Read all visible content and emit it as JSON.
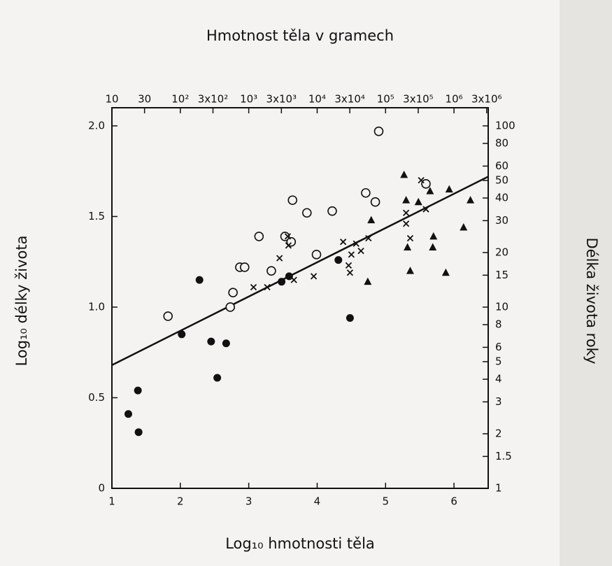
{
  "chart_data": {
    "type": "scatter",
    "x_title": "Log₁₀ hmotnosti těla",
    "y_title": "Log₁₀ délky života",
    "x2_title": "Hmotnost těla v gramech",
    "y2_title": "Délka života roky",
    "xlim": [
      1,
      6.5
    ],
    "xticks": [
      1,
      2,
      3,
      4,
      5,
      6
    ],
    "ylim": [
      0,
      2.1
    ],
    "yticks": [
      0,
      0.5,
      {
        "value": 1,
        "label": "1.0"
      },
      1.5,
      {
        "value": 2,
        "label": "2.0"
      }
    ],
    "x2_log": true,
    "x2lim": [
      10,
      3162278
    ],
    "x2ticks": [
      10,
      30,
      {
        "value": 100,
        "label": "10²"
      },
      {
        "value": 300,
        "label": "3x10²"
      },
      {
        "value": 1000,
        "label": "10³"
      },
      {
        "value": 3000,
        "label": "3x10³"
      },
      {
        "value": 10000,
        "label": "10⁴"
      },
      {
        "value": 30000,
        "label": "3x10⁴"
      },
      {
        "value": 100000,
        "label": "10⁵"
      },
      {
        "value": 300000,
        "label": "3x10⁵"
      },
      {
        "value": 1000000,
        "label": "10⁶"
      },
      {
        "value": 3000000,
        "label": "3x10⁶"
      }
    ],
    "y2_log": true,
    "y2lim": [
      1,
      125.9
    ],
    "y2ticks": [
      1,
      1.5,
      2,
      3,
      4,
      5,
      6,
      8,
      10,
      15,
      20,
      30,
      40,
      50,
      60,
      80,
      100
    ],
    "series": [
      {
        "marker": "filled-circle",
        "color": "#111111",
        "x": [
          1.24,
          1.38,
          1.39,
          2.02,
          2.45,
          2.28,
          2.67,
          2.54,
          3.48,
          3.59,
          4.31,
          4.48
        ],
        "values": [
          0.41,
          0.54,
          0.31,
          0.85,
          0.81,
          1.15,
          0.8,
          0.61,
          1.14,
          1.17,
          1.26,
          0.94
        ]
      },
      {
        "marker": "open-circle",
        "color": "#111111",
        "x": [
          1.82,
          2.73,
          2.77,
          2.87,
          2.94,
          3.15,
          3.33,
          3.53,
          3.62,
          3.64,
          3.85,
          3.99,
          4.22,
          4.71,
          4.85,
          4.9,
          5.59
        ],
        "values": [
          0.95,
          1.0,
          1.08,
          1.22,
          1.22,
          1.39,
          1.2,
          1.39,
          1.36,
          1.59,
          1.52,
          1.29,
          1.53,
          1.63,
          1.58,
          1.97,
          1.68
        ]
      },
      {
        "marker": "cross",
        "color": "#111111",
        "x": [
          3.07,
          3.27,
          3.45,
          3.57,
          3.58,
          3.66,
          3.95,
          4.38,
          4.46,
          4.48,
          4.5,
          4.57,
          4.64,
          4.75,
          5.3,
          5.3,
          5.36,
          5.52,
          5.59
        ],
        "values": [
          1.11,
          1.11,
          1.27,
          1.39,
          1.34,
          1.15,
          1.17,
          1.36,
          1.23,
          1.19,
          1.29,
          1.35,
          1.31,
          1.38,
          1.52,
          1.46,
          1.38,
          1.7,
          1.54
        ]
      },
      {
        "marker": "triangle",
        "color": "#111111",
        "x": [
          4.79,
          4.74,
          5.27,
          5.3,
          5.32,
          5.36,
          5.48,
          5.65,
          5.7,
          5.69,
          5.88,
          5.93,
          6.24,
          6.14
        ],
        "values": [
          1.48,
          1.14,
          1.73,
          1.59,
          1.33,
          1.2,
          1.58,
          1.64,
          1.39,
          1.33,
          1.19,
          1.65,
          1.59,
          1.44
        ]
      }
    ],
    "trend_line": {
      "color": "#111111",
      "x": [
        1,
        6.5
      ],
      "values": [
        0.68,
        1.72
      ]
    }
  }
}
